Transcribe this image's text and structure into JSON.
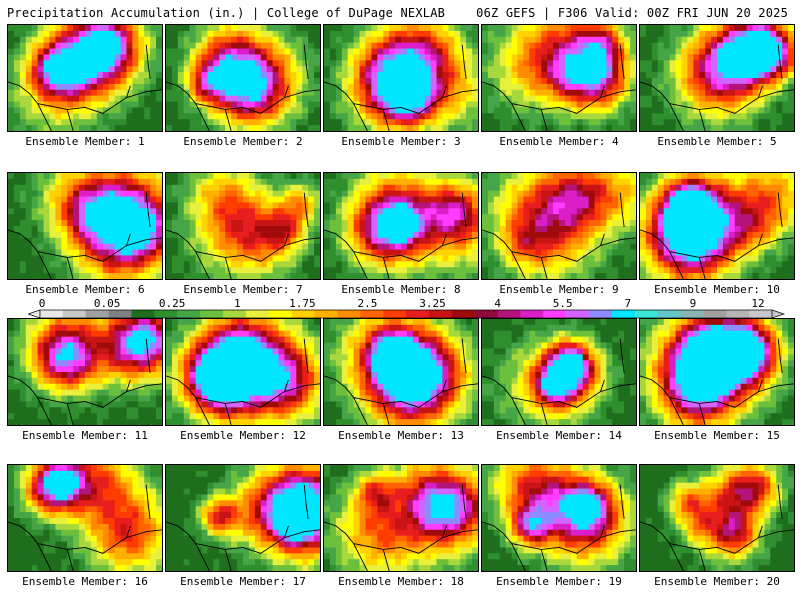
{
  "header": {
    "left": "Precipitation Accumulation (in.) | College of DuPage NEXLAB",
    "right": "06Z GEFS | F306 Valid: 00Z FRI JUN 20 2025"
  },
  "panels": [
    {
      "label": "Ensemble Member: 1"
    },
    {
      "label": "Ensemble Member: 2"
    },
    {
      "label": "Ensemble Member: 3"
    },
    {
      "label": "Ensemble Member: 4"
    },
    {
      "label": "Ensemble Member: 5"
    },
    {
      "label": "Ensemble Member: 6"
    },
    {
      "label": "Ensemble Member: 7"
    },
    {
      "label": "Ensemble Member: 8"
    },
    {
      "label": "Ensemble Member: 9"
    },
    {
      "label": "Ensemble Member: 10"
    },
    {
      "label": "Ensemble Member: 11"
    },
    {
      "label": "Ensemble Member: 12"
    },
    {
      "label": "Ensemble Member: 13"
    },
    {
      "label": "Ensemble Member: 14"
    },
    {
      "label": "Ensemble Member: 15"
    },
    {
      "label": "Ensemble Member: 16"
    },
    {
      "label": "Ensemble Member: 17"
    },
    {
      "label": "Ensemble Member: 18"
    },
    {
      "label": "Ensemble Member: 19"
    },
    {
      "label": "Ensemble Member: 20"
    }
  ],
  "colorbar": {
    "tick_labels": [
      "0",
      "0.05",
      "0.25",
      "1",
      "1.75",
      "2.5",
      "3.25",
      "4",
      "5.5",
      "7",
      "9",
      "12"
    ],
    "colors": [
      "#e8e8e8",
      "#c8c8c8",
      "#a0a0a0",
      "#808080",
      "#1e6e1e",
      "#2f8f2f",
      "#46a546",
      "#6cc03c",
      "#a8d83c",
      "#e8f03c",
      "#ffff00",
      "#ffd200",
      "#ffb000",
      "#ff8c00",
      "#ff6400",
      "#ff3c00",
      "#e81e1e",
      "#c81414",
      "#a00a0a",
      "#8c0a3c",
      "#b4147a",
      "#dc1ec8",
      "#ff3cff",
      "#d264ff",
      "#8c8cff",
      "#00e6ff",
      "#3ce6d2",
      "#64c8c8",
      "#8cb4b4",
      "#a0a0a0",
      "#b4b4b4",
      "#c8c8c8"
    ]
  }
}
